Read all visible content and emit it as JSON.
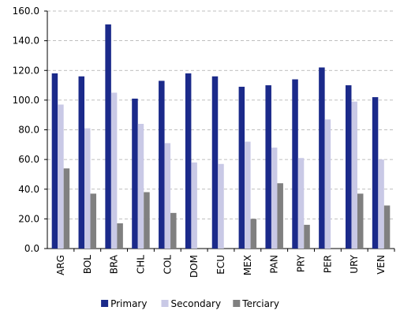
{
  "chart_data": {
    "type": "bar",
    "categories": [
      "ARG",
      "BOL",
      "BRA",
      "CHL",
      "COL",
      "DOM",
      "ECU",
      "MEX",
      "PAN",
      "PRY",
      "PER",
      "URY",
      "VEN"
    ],
    "series": [
      {
        "name": "Primary",
        "color": "#1b2a8a",
        "values": [
          118,
          116,
          151,
          101,
          113,
          118,
          116,
          109,
          110,
          114,
          122,
          110,
          102
        ]
      },
      {
        "name": "Secondary",
        "color": "#c9c9e6",
        "values": [
          97,
          81,
          105,
          84,
          71,
          58,
          57,
          72,
          68,
          61,
          87,
          99,
          60
        ]
      },
      {
        "name": "Terciary",
        "color": "#808080",
        "values": [
          54,
          37,
          17,
          38,
          24,
          null,
          null,
          20,
          44,
          16,
          null,
          37,
          29
        ]
      }
    ],
    "ylim": [
      0,
      160
    ],
    "yticks": [
      {
        "value": 0,
        "label": "0.0"
      },
      {
        "value": 20,
        "label": "20.0"
      },
      {
        "value": 40,
        "label": "40.0"
      },
      {
        "value": 60,
        "label": "60.0"
      },
      {
        "value": 80,
        "label": "80.0"
      },
      {
        "value": 100,
        "label": "100.0"
      },
      {
        "value": 120,
        "label": "120.0"
      },
      {
        "value": 140,
        "label": "140.0"
      },
      {
        "value": 160,
        "label": "160.0"
      }
    ],
    "grid": true,
    "legend": "bottom"
  }
}
